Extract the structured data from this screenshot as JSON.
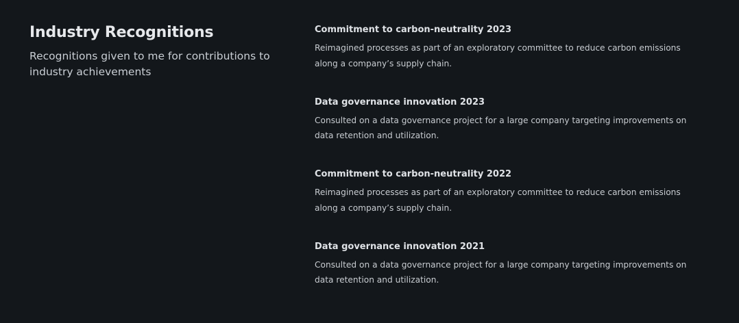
{
  "intro": {
    "title": "Industry Recognitions",
    "subtitle": "Recognitions given to me for contributions to industry achievements"
  },
  "recognitions": [
    {
      "title": "Commitment to carbon-neutrality 2023",
      "description": "Reimagined processes as part of an exploratory committee to reduce carbon emissions along a company’s supply chain."
    },
    {
      "title": "Data governance innovation 2023",
      "description": "Consulted on a data governance project for a large company targeting improvements on data retention and utilization."
    },
    {
      "title": "Commitment to carbon-neutrality 2022",
      "description": "Reimagined processes as part of an exploratory committee to reduce carbon emissions along a company’s supply chain."
    },
    {
      "title": "Data governance innovation 2021",
      "description": "Consulted on a data governance project for a large company targeting improvements on data retention and utilization."
    }
  ]
}
